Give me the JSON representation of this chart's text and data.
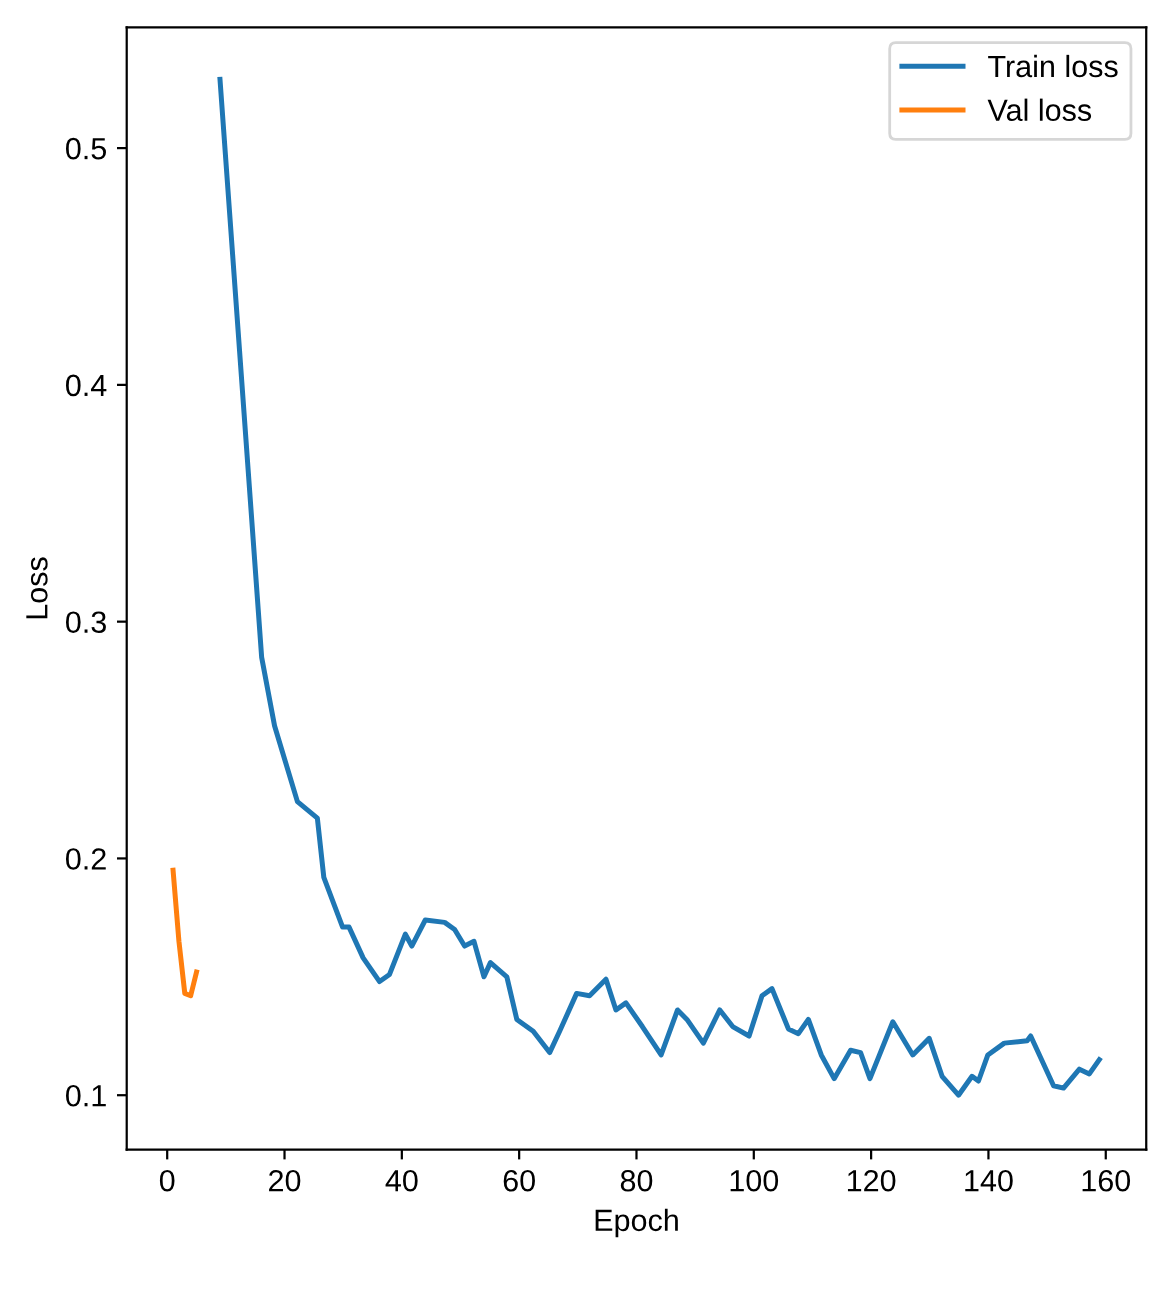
{
  "chart_data": {
    "type": "line",
    "xlabel": "Epoch",
    "ylabel": "Loss",
    "xlim": [
      -6.9,
      166.9
    ],
    "ylim": [
      0.077,
      0.551
    ],
    "xticks": [
      0,
      20,
      40,
      60,
      80,
      100,
      120,
      140,
      160
    ],
    "yticks": [
      0.1,
      0.2,
      0.3,
      0.4,
      0.5
    ],
    "grid": false,
    "legend": "top right",
    "series": [
      {
        "name": "Train loss",
        "color": "#1f77b4",
        "x": [
          9,
          16.1,
          18.3,
          22.2,
          25.6,
          26.7,
          29.9,
          31,
          33.4,
          36.2,
          37.9,
          40.6,
          41.7,
          44,
          47.3,
          49,
          50.7,
          52.3,
          54,
          55.1,
          57.9,
          59.6,
          62.4,
          65.2,
          66.9,
          69.8,
          72,
          74.8,
          76.5,
          78.2,
          81,
          84.2,
          87,
          88.6,
          91.4,
          94.2,
          96.4,
          99.2,
          101.4,
          103.1,
          105.9,
          107.6,
          109.3,
          111.5,
          113.7,
          116.5,
          118.2,
          119.8,
          123.7,
          127.1,
          129.9,
          132.1,
          134.9,
          137.2,
          138.3,
          139.9,
          142.7,
          146.6,
          147.2,
          151.1,
          152.8,
          155.5,
          157.2,
          158.9
        ],
        "values": [
          0.529,
          0.285,
          0.256,
          0.224,
          0.217,
          0.192,
          0.171,
          0.171,
          0.158,
          0.148,
          0.151,
          0.168,
          0.163,
          0.174,
          0.173,
          0.17,
          0.163,
          0.165,
          0.15,
          0.156,
          0.15,
          0.132,
          0.127,
          0.118,
          0.127,
          0.143,
          0.142,
          0.149,
          0.136,
          0.139,
          0.129,
          0.117,
          0.136,
          0.132,
          0.122,
          0.136,
          0.129,
          0.125,
          0.142,
          0.145,
          0.128,
          0.126,
          0.132,
          0.117,
          0.107,
          0.119,
          0.118,
          0.107,
          0.131,
          0.117,
          0.124,
          0.108,
          0.1,
          0.108,
          0.106,
          0.117,
          0.122,
          0.123,
          0.125,
          0.104,
          0.103,
          0.111,
          0.109,
          0.115
        ]
      },
      {
        "name": "Val loss",
        "color": "#ff7f0e",
        "x": [
          1,
          2,
          3,
          4,
          5
        ],
        "values": [
          0.195,
          0.165,
          0.143,
          0.142,
          0.152
        ]
      }
    ]
  }
}
